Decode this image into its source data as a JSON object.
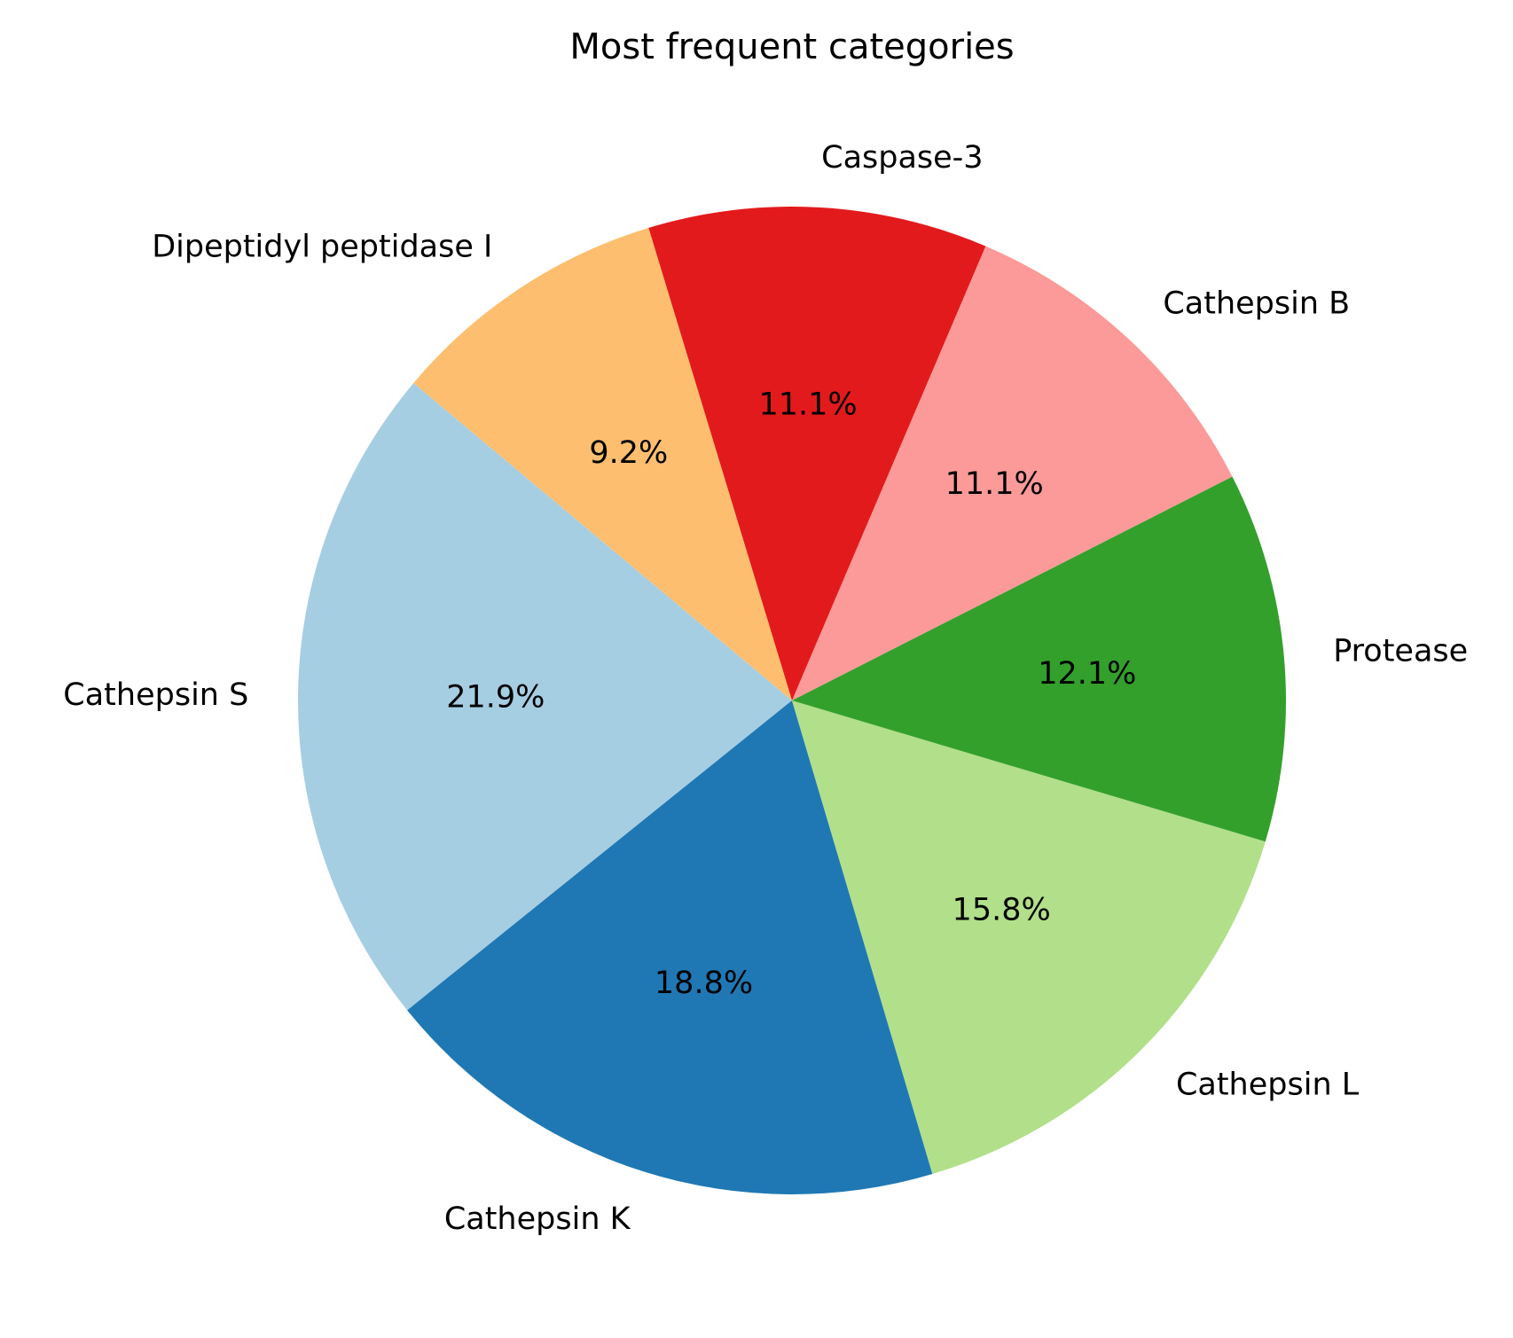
{
  "chart_data": {
    "type": "pie",
    "title": "Most frequent categories",
    "start_angle_deg": 140,
    "direction": "counterclockwise",
    "slices": [
      {
        "label": "Cathepsin S",
        "value": 21.9,
        "pct_label": "21.9%",
        "color": "#a6cee3"
      },
      {
        "label": "Cathepsin K",
        "value": 18.8,
        "pct_label": "18.8%",
        "color": "#1f78b4"
      },
      {
        "label": "Cathepsin L",
        "value": 15.8,
        "pct_label": "15.8%",
        "color": "#b2df8a"
      },
      {
        "label": "Protease",
        "value": 12.1,
        "pct_label": "12.1%",
        "color": "#33a02c"
      },
      {
        "label": "Cathepsin B",
        "value": 11.1,
        "pct_label": "11.1%",
        "color": "#fb9a99"
      },
      {
        "label": "Caspase-3",
        "value": 11.1,
        "pct_label": "11.1%",
        "color": "#e31a1c"
      },
      {
        "label": "Dipeptidyl peptidase I",
        "value": 9.2,
        "pct_label": "9.2%",
        "color": "#fdbf6f"
      }
    ]
  }
}
